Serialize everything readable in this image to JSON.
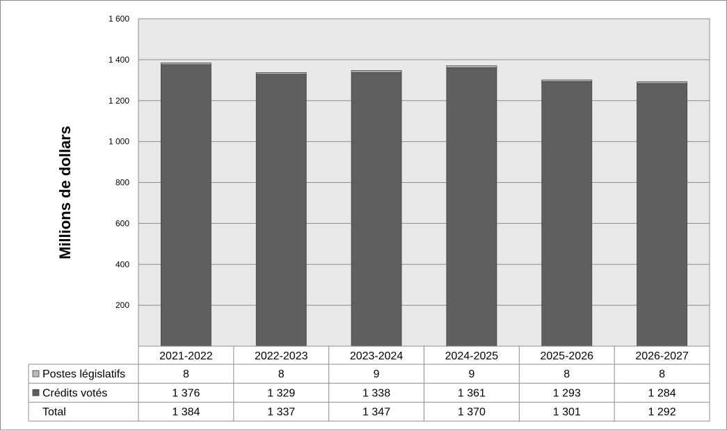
{
  "chart_data": {
    "type": "bar",
    "stacked": true,
    "categories": [
      "2021-2022",
      "2022-2023",
      "2023-2024",
      "2024-2025",
      "2025-2026",
      "2026-2027"
    ],
    "series": [
      {
        "name": "Crédits votés",
        "values": [
          1376,
          1329,
          1338,
          1361,
          1293,
          1284
        ],
        "color": "#5f5f5f",
        "labels": [
          "1 376",
          "1 329",
          "1 338",
          "1 361",
          "1 293",
          "1 284"
        ]
      },
      {
        "name": "Postes législatifs",
        "values": [
          8,
          8,
          9,
          9,
          8,
          8
        ],
        "color": "#b8b8b8",
        "labels": [
          "8",
          "8",
          "9",
          "9",
          "8",
          "8"
        ]
      }
    ],
    "totals": {
      "name": "Total",
      "values": [
        1384,
        1337,
        1347,
        1370,
        1301,
        1292
      ],
      "labels": [
        "1 384",
        "1 337",
        "1 347",
        "1 370",
        "1 301",
        "1 292"
      ]
    },
    "table_row_order": [
      "Postes législatifs",
      "Crédits votés",
      "Total"
    ],
    "ylabel": "Millions de dollars",
    "ylim": [
      0,
      1600
    ],
    "yticks": [
      200,
      400,
      600,
      800,
      1000,
      1200,
      1400,
      1600
    ],
    "ytick_labels": [
      "200",
      "400",
      "600",
      "800",
      "1 000",
      "1 200",
      "1 400",
      "1 600"
    ],
    "grid": true,
    "plot_background": "#e8e8e8",
    "legend": "data-table-below"
  }
}
